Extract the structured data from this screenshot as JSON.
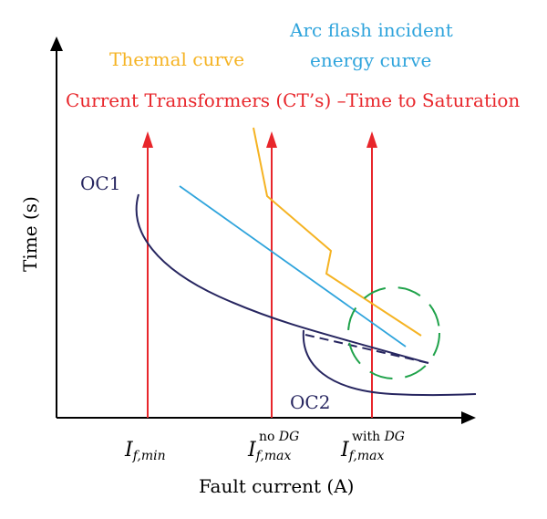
{
  "axes": {
    "y_label": "Time (s)",
    "x_label": "Fault current (A)"
  },
  "labels": {
    "thermal": "Thermal curve",
    "arc_flash_line1": "Arc flash incident",
    "arc_flash_line2": "energy curve",
    "ct": "Current Transformers (CT’s) –Time to Saturation",
    "oc1": "OC1",
    "oc2": "OC2"
  },
  "ticks": {
    "if_min": {
      "main": "I",
      "sub": "f,min",
      "sup": ""
    },
    "if_max_no_dg": {
      "main": "I",
      "sub": "f,max",
      "sup_roman": "no ",
      "sup_italic": "DG"
    },
    "if_max_with_dg": {
      "main": "I",
      "sub": "f,max",
      "sup_roman": "with ",
      "sup_italic": "DG"
    }
  },
  "colors": {
    "axis": "#000000",
    "red": "#e8262b",
    "thermal": "#f5b323",
    "arc": "#2fa4dc",
    "oc": "#272660",
    "green": "#1fa24a",
    "ct_text": "#e8262b",
    "thermal_text": "#f5b323",
    "arc_text": "#2fa4dc",
    "oc_text": "#272660"
  }
}
